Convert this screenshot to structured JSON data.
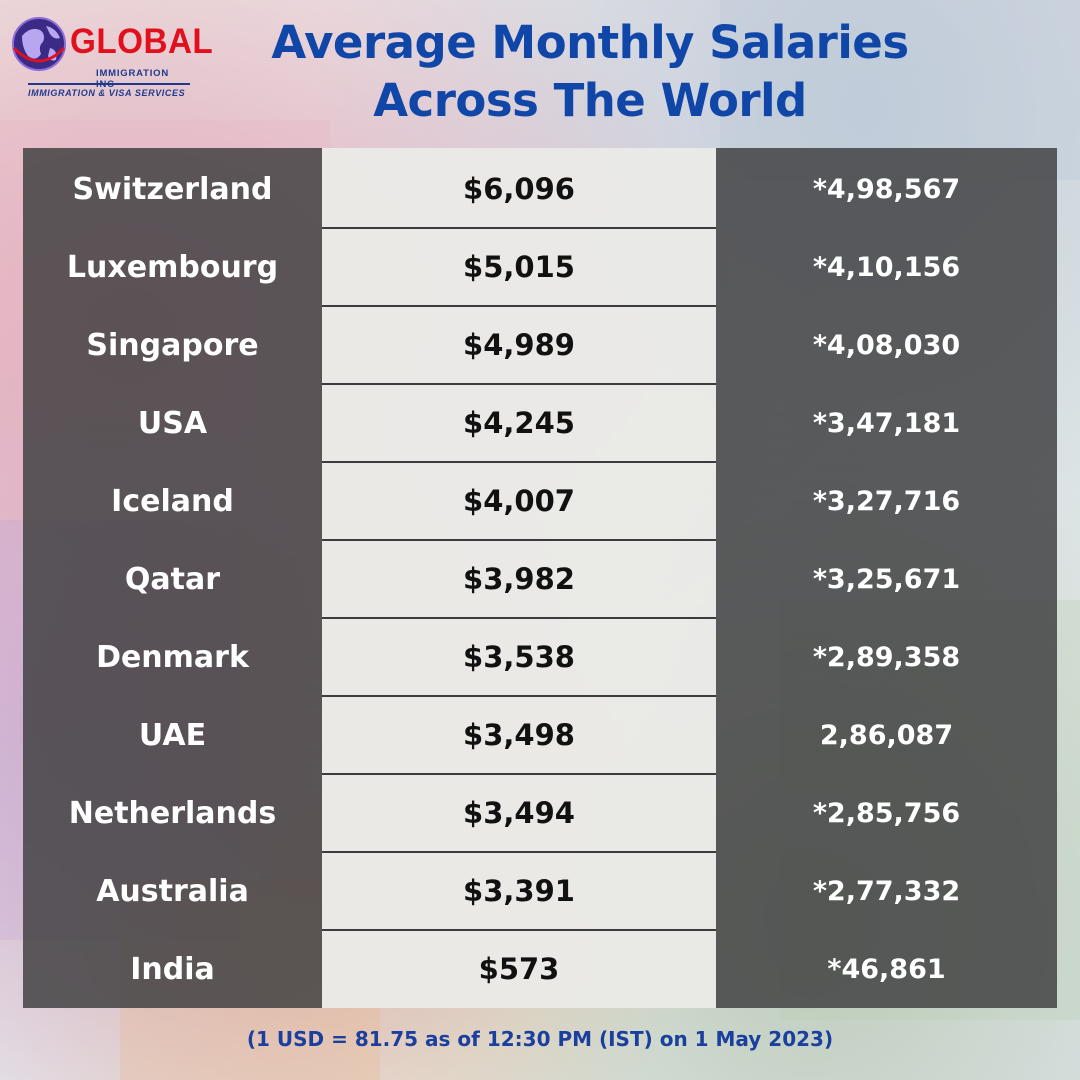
{
  "logo": {
    "name": "GLOBAL",
    "subtitle": "IMMIGRATION INC",
    "tagline": "IMMIGRATION & VISA SERVICES"
  },
  "title_line1": "Average Monthly Salaries",
  "title_line2": "Across The World",
  "chart_data": {
    "type": "table",
    "title": "Average Monthly Salaries Across The World",
    "columns": [
      "",
      "",
      ""
    ],
    "rows": [
      [
        "Switzerland",
        "$6,096",
        "*4,98,567"
      ],
      [
        "Luxembourg",
        "$5,015",
        "*4,10,156"
      ],
      [
        "Singapore",
        "$4,989",
        "*4,08,030"
      ],
      [
        "USA",
        "$4,245",
        "*3,47,181"
      ],
      [
        "Iceland",
        "$4,007",
        "*3,27,716"
      ],
      [
        "Qatar",
        "$3,982",
        "*3,25,671"
      ],
      [
        "Denmark",
        "$3,538",
        "*2,89,358"
      ],
      [
        "UAE",
        "$3,498",
        "2,86,087"
      ],
      [
        "Netherlands",
        "$3,494",
        "*2,85,756"
      ],
      [
        "Australia",
        "$3,391",
        "*2,77,332"
      ],
      [
        "India",
        "$573",
        "*46,861"
      ]
    ]
  },
  "footnote": "(1 USD = 81.75 as of 12:30 PM (IST) on 1 May 2023)",
  "colors": {
    "title": "#0f46a8",
    "logo_red": "#e0101d",
    "logo_blue": "#1d3a8f",
    "panel": "#404042",
    "middle_column": "#faf9f6"
  }
}
